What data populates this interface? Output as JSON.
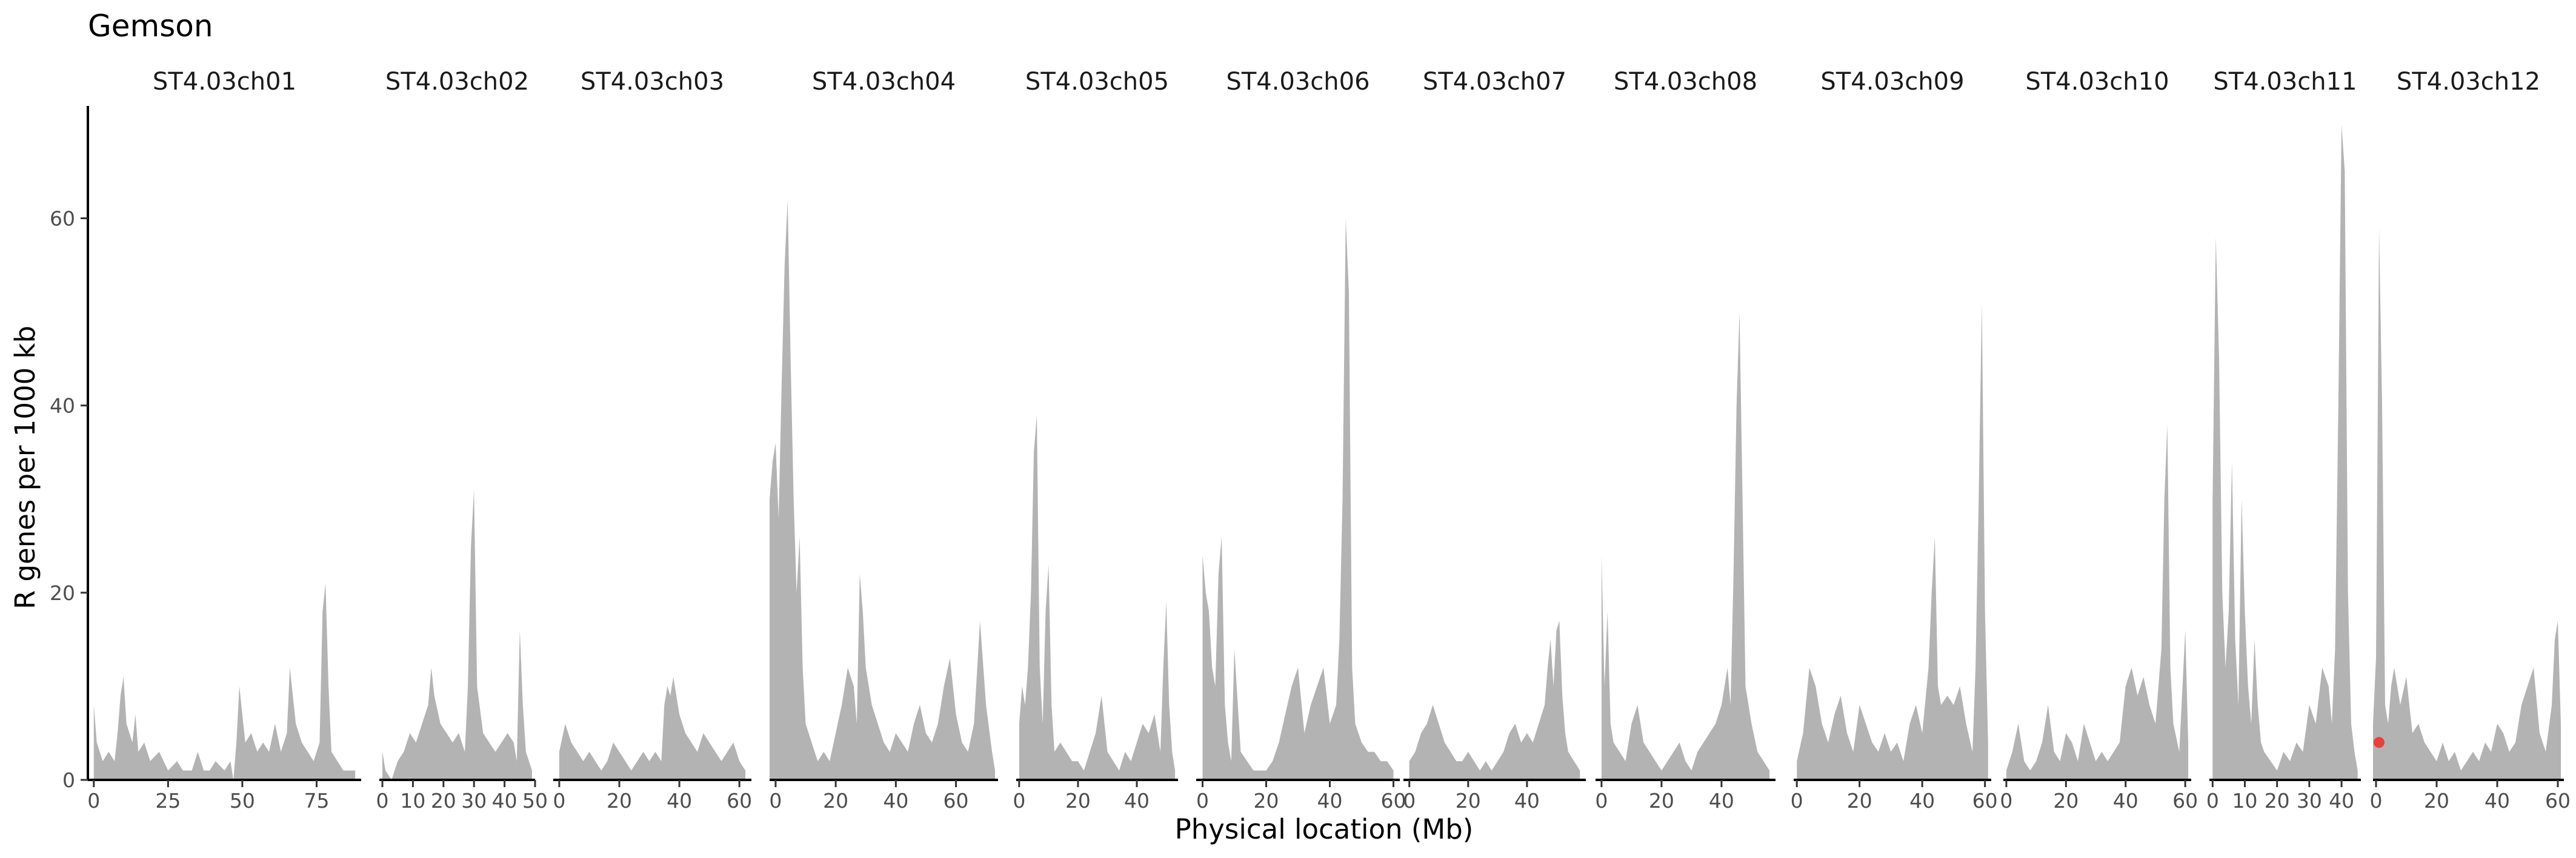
{
  "chart_data": {
    "type": "area",
    "title": "Gemson",
    "xlabel": "Physical location (Mb)",
    "ylabel": "R genes per 1000 kb",
    "ylim": [
      0,
      72
    ],
    "yticks": [
      0,
      20,
      40,
      60
    ],
    "grid": false,
    "colors": {
      "fill": "#b3b3b3",
      "point": "#e8413c",
      "axis": "#000000"
    },
    "panels": [
      {
        "name": "ST4.03ch01",
        "xlim": [
          -2,
          90
        ],
        "xticks": [
          0,
          25,
          50,
          75
        ],
        "x": [
          0,
          1,
          3,
          5,
          7,
          8,
          9,
          10,
          11,
          13,
          14,
          15,
          17,
          19,
          22,
          25,
          28,
          30,
          33,
          35,
          37,
          39,
          41,
          44,
          46,
          47,
          48,
          49,
          51,
          53,
          55,
          57,
          59,
          61,
          63,
          65,
          66,
          68,
          70,
          72,
          74,
          76,
          77,
          78,
          79,
          80,
          82,
          84,
          86,
          88
        ],
        "y": [
          8,
          4,
          2,
          3,
          2,
          5,
          9,
          11,
          6,
          4,
          7,
          3,
          4,
          2,
          3,
          1,
          2,
          1,
          1,
          3,
          1,
          1,
          2,
          1,
          2,
          0,
          4,
          10,
          4,
          5,
          3,
          4,
          3,
          6,
          3,
          5,
          12,
          6,
          4,
          3,
          2,
          4,
          18,
          21,
          10,
          3,
          2,
          1,
          1,
          1
        ]
      },
      {
        "name": "ST4.03ch02",
        "xlim": [
          -1,
          50
        ],
        "xticks": [
          0,
          10,
          20,
          30,
          40,
          50
        ],
        "x": [
          0,
          1,
          3,
          5,
          7,
          9,
          11,
          13,
          15,
          16,
          17,
          19,
          21,
          23,
          25,
          27,
          28,
          29,
          30,
          31,
          33,
          35,
          37,
          39,
          41,
          43,
          44,
          45,
          46,
          47,
          48,
          49
        ],
        "y": [
          3,
          1,
          0,
          2,
          3,
          5,
          4,
          6,
          8,
          12,
          9,
          6,
          5,
          4,
          5,
          3,
          10,
          25,
          31,
          10,
          5,
          4,
          3,
          4,
          5,
          4,
          2,
          16,
          8,
          3,
          2,
          1
        ]
      },
      {
        "name": "ST4.03ch03",
        "xlim": [
          -2,
          64
        ],
        "xticks": [
          0,
          20,
          40,
          60
        ],
        "x": [
          0,
          2,
          4,
          6,
          8,
          10,
          12,
          14,
          16,
          18,
          20,
          22,
          24,
          26,
          28,
          30,
          32,
          34,
          35,
          36,
          37,
          38,
          40,
          42,
          44,
          46,
          48,
          50,
          52,
          54,
          56,
          58,
          60,
          62
        ],
        "y": [
          3,
          6,
          4,
          3,
          2,
          3,
          2,
          1,
          2,
          4,
          3,
          2,
          1,
          2,
          3,
          2,
          3,
          2,
          8,
          10,
          9,
          11,
          7,
          5,
          4,
          3,
          5,
          4,
          3,
          2,
          3,
          4,
          2,
          1
        ]
      },
      {
        "name": "ST4.03ch04",
        "xlim": [
          -2,
          74
        ],
        "xticks": [
          0,
          20,
          40,
          60
        ],
        "x": [
          -2,
          -1,
          0,
          1,
          2,
          3,
          4,
          5,
          6,
          7,
          8,
          9,
          10,
          12,
          14,
          16,
          18,
          20,
          22,
          24,
          26,
          27,
          28,
          29,
          30,
          32,
          34,
          36,
          38,
          40,
          42,
          44,
          46,
          48,
          50,
          52,
          54,
          56,
          58,
          60,
          62,
          64,
          66,
          68,
          70,
          72,
          73
        ],
        "y": [
          30,
          34,
          36,
          28,
          42,
          55,
          62,
          45,
          30,
          20,
          26,
          12,
          6,
          4,
          2,
          3,
          2,
          5,
          8,
          12,
          10,
          6,
          22,
          18,
          12,
          8,
          6,
          4,
          3,
          5,
          4,
          3,
          6,
          8,
          5,
          4,
          6,
          10,
          13,
          7,
          4,
          3,
          6,
          17,
          8,
          3,
          1
        ]
      },
      {
        "name": "ST4.03ch05",
        "xlim": [
          -1,
          54
        ],
        "xticks": [
          0,
          20,
          40
        ],
        "x": [
          0,
          1,
          2,
          3,
          4,
          5,
          6,
          7,
          8,
          9,
          10,
          11,
          12,
          14,
          16,
          18,
          20,
          22,
          24,
          26,
          28,
          30,
          32,
          34,
          36,
          38,
          40,
          42,
          44,
          46,
          48,
          49,
          50,
          51,
          52,
          53
        ],
        "y": [
          6,
          10,
          8,
          12,
          20,
          35,
          39,
          12,
          6,
          18,
          23,
          8,
          3,
          4,
          3,
          2,
          2,
          1,
          3,
          5,
          9,
          3,
          2,
          1,
          3,
          2,
          4,
          6,
          5,
          7,
          3,
          12,
          19,
          8,
          3,
          1
        ]
      },
      {
        "name": "ST4.03ch06",
        "xlim": [
          -2,
          62
        ],
        "xticks": [
          0,
          20,
          40,
          60
        ],
        "x": [
          0,
          1,
          2,
          3,
          4,
          5,
          6,
          7,
          8,
          9,
          10,
          12,
          14,
          16,
          18,
          20,
          22,
          24,
          26,
          28,
          30,
          32,
          34,
          36,
          38,
          40,
          42,
          43,
          44,
          45,
          46,
          47,
          48,
          50,
          52,
          54,
          56,
          58,
          60
        ],
        "y": [
          24,
          20,
          18,
          12,
          10,
          22,
          26,
          8,
          4,
          2,
          14,
          3,
          2,
          1,
          1,
          1,
          2,
          4,
          7,
          10,
          12,
          5,
          8,
          10,
          12,
          6,
          8,
          15,
          30,
          60,
          52,
          12,
          6,
          4,
          3,
          3,
          2,
          2,
          1
        ]
      },
      {
        "name": "ST4.03ch07",
        "xlim": [
          -2,
          60
        ],
        "xticks": [
          0,
          20,
          40
        ],
        "x": [
          0,
          2,
          4,
          6,
          8,
          10,
          12,
          14,
          16,
          18,
          20,
          22,
          24,
          26,
          28,
          30,
          32,
          34,
          36,
          38,
          40,
          42,
          44,
          46,
          47,
          48,
          49,
          50,
          51,
          52,
          53,
          54,
          56,
          58
        ],
        "y": [
          2,
          3,
          5,
          6,
          8,
          6,
          4,
          3,
          2,
          2,
          3,
          2,
          1,
          2,
          1,
          2,
          3,
          5,
          6,
          4,
          5,
          4,
          6,
          8,
          12,
          15,
          10,
          16,
          17,
          9,
          5,
          3,
          2,
          1
        ]
      },
      {
        "name": "ST4.03ch08",
        "xlim": [
          -2,
          58
        ],
        "xticks": [
          0,
          20,
          40
        ],
        "x": [
          0,
          1,
          2,
          3,
          4,
          6,
          8,
          10,
          12,
          14,
          16,
          18,
          20,
          22,
          24,
          26,
          28,
          30,
          32,
          34,
          36,
          38,
          40,
          42,
          43,
          44,
          45,
          46,
          47,
          48,
          50,
          52,
          54,
          56
        ],
        "y": [
          24,
          10,
          18,
          6,
          4,
          3,
          2,
          6,
          8,
          4,
          3,
          2,
          1,
          2,
          3,
          4,
          2,
          1,
          3,
          4,
          5,
          6,
          8,
          12,
          8,
          22,
          40,
          50,
          30,
          10,
          6,
          3,
          2,
          1
        ]
      },
      {
        "name": "ST4.03ch09",
        "xlim": [
          -1,
          62
        ],
        "xticks": [
          0,
          20,
          40,
          60
        ],
        "x": [
          0,
          2,
          4,
          6,
          8,
          10,
          12,
          14,
          16,
          18,
          20,
          22,
          24,
          26,
          28,
          30,
          32,
          34,
          36,
          38,
          40,
          42,
          43,
          44,
          45,
          46,
          48,
          50,
          52,
          54,
          56,
          57,
          58,
          59,
          60,
          61
        ],
        "y": [
          2,
          5,
          12,
          10,
          6,
          4,
          7,
          9,
          5,
          3,
          8,
          6,
          4,
          3,
          5,
          3,
          4,
          2,
          6,
          8,
          5,
          12,
          20,
          26,
          10,
          8,
          9,
          8,
          10,
          6,
          3,
          12,
          30,
          51,
          18,
          4
        ]
      },
      {
        "name": "ST4.03ch10",
        "xlim": [
          -1,
          62
        ],
        "xticks": [
          0,
          20,
          40,
          60
        ],
        "x": [
          0,
          2,
          4,
          6,
          8,
          10,
          12,
          14,
          16,
          18,
          20,
          22,
          24,
          26,
          28,
          30,
          32,
          34,
          36,
          38,
          40,
          42,
          44,
          46,
          48,
          50,
          52,
          53,
          54,
          55,
          56,
          58,
          60,
          61
        ],
        "y": [
          1,
          3,
          6,
          2,
          1,
          2,
          4,
          8,
          3,
          2,
          5,
          4,
          2,
          6,
          4,
          2,
          3,
          2,
          3,
          4,
          10,
          12,
          9,
          11,
          8,
          6,
          14,
          30,
          38,
          12,
          6,
          3,
          16,
          4
        ]
      },
      {
        "name": "ST4.03ch11",
        "xlim": [
          -1,
          46
        ],
        "xticks": [
          0,
          10,
          20,
          30,
          40
        ],
        "x": [
          0,
          1,
          2,
          3,
          4,
          5,
          6,
          7,
          8,
          9,
          10,
          11,
          12,
          13,
          14,
          15,
          16,
          18,
          20,
          22,
          24,
          26,
          28,
          30,
          32,
          34,
          36,
          37,
          38,
          39,
          40,
          41,
          42,
          43,
          44,
          45
        ],
        "y": [
          30,
          58,
          45,
          20,
          12,
          18,
          34,
          15,
          8,
          30,
          18,
          10,
          6,
          15,
          8,
          4,
          3,
          2,
          1,
          3,
          2,
          4,
          3,
          8,
          6,
          12,
          10,
          6,
          14,
          40,
          70,
          65,
          20,
          6,
          3,
          1
        ]
      },
      {
        "name": "ST4.03ch12",
        "xlim": [
          -1,
          62
        ],
        "xticks": [
          0,
          20,
          40,
          60
        ],
        "x": [
          -1,
          0,
          1,
          2,
          3,
          4,
          5,
          6,
          8,
          10,
          12,
          14,
          16,
          18,
          20,
          22,
          24,
          26,
          28,
          30,
          32,
          34,
          36,
          38,
          40,
          42,
          44,
          46,
          48,
          50,
          52,
          54,
          56,
          58,
          59,
          60,
          61
        ],
        "y": [
          6,
          13,
          59,
          40,
          8,
          6,
          10,
          12,
          8,
          11,
          5,
          6,
          4,
          3,
          2,
          4,
          2,
          3,
          1,
          2,
          3,
          2,
          4,
          3,
          6,
          5,
          3,
          4,
          8,
          10,
          12,
          5,
          3,
          8,
          15,
          17,
          6
        ],
        "highlight_point": {
          "x": 1,
          "y": 4
        }
      }
    ]
  }
}
